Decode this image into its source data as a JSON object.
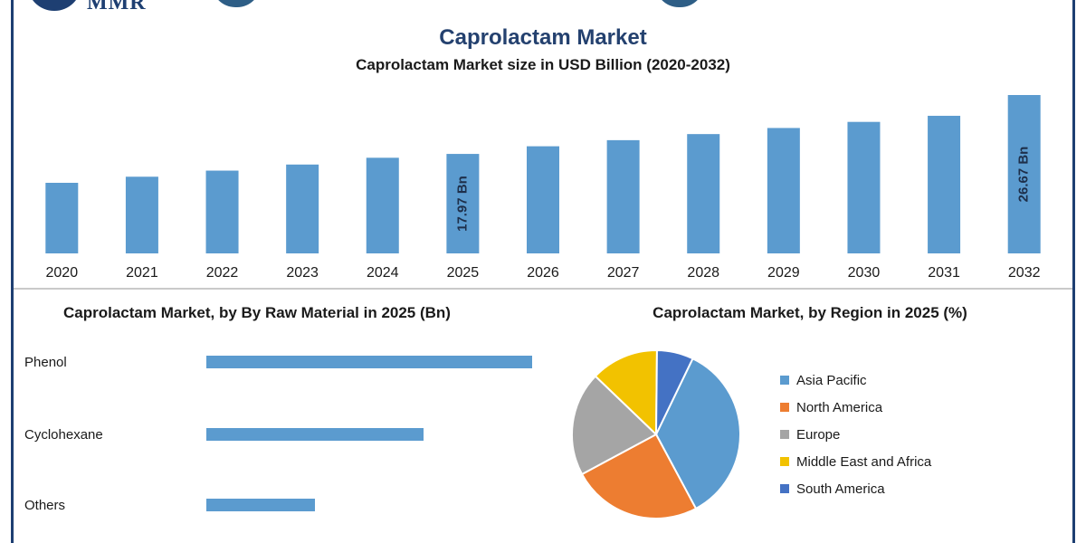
{
  "header": {
    "logo_text": "MMR",
    "title": "Caprolactam Market"
  },
  "chart_data": [
    {
      "type": "bar",
      "title": "Caprolactam Market size in USD Billion (2020-2032)",
      "categories": [
        "2020",
        "2021",
        "2022",
        "2023",
        "2024",
        "2025",
        "2026",
        "2027",
        "2028",
        "2029",
        "2030",
        "2031",
        "2032"
      ],
      "values": [
        13.7,
        14.6,
        15.5,
        16.4,
        17.4,
        17.97,
        19.1,
        20.0,
        20.9,
        21.8,
        22.7,
        23.6,
        26.67
      ],
      "data_labels": [
        {
          "category": "2025",
          "text": "17.97 Bn"
        },
        {
          "category": "2032",
          "text": "26.67 Bn"
        }
      ],
      "color": "#5b9bcf",
      "grid": false
    },
    {
      "type": "bar",
      "orientation": "horizontal",
      "title": "Caprolactam Market, by By Raw Material in 2025 (Bn)",
      "categories": [
        "Phenol",
        "Cyclohexane",
        "Others"
      ],
      "values": [
        9.0,
        6.0,
        3.0
      ],
      "color": "#5b9bcf",
      "grid": false
    },
    {
      "type": "pie",
      "title": "Caprolactam Market, by Region in 2025 (%)",
      "categories": [
        "Asia Pacific",
        "North America",
        "Europe",
        "Middle East and Africa",
        "South America"
      ],
      "values": [
        35,
        25,
        20,
        13,
        7
      ],
      "colors": [
        "#5b9bcf",
        "#ed7d31",
        "#a5a5a5",
        "#f2c200",
        "#4472c4"
      ],
      "legend": "right"
    }
  ]
}
